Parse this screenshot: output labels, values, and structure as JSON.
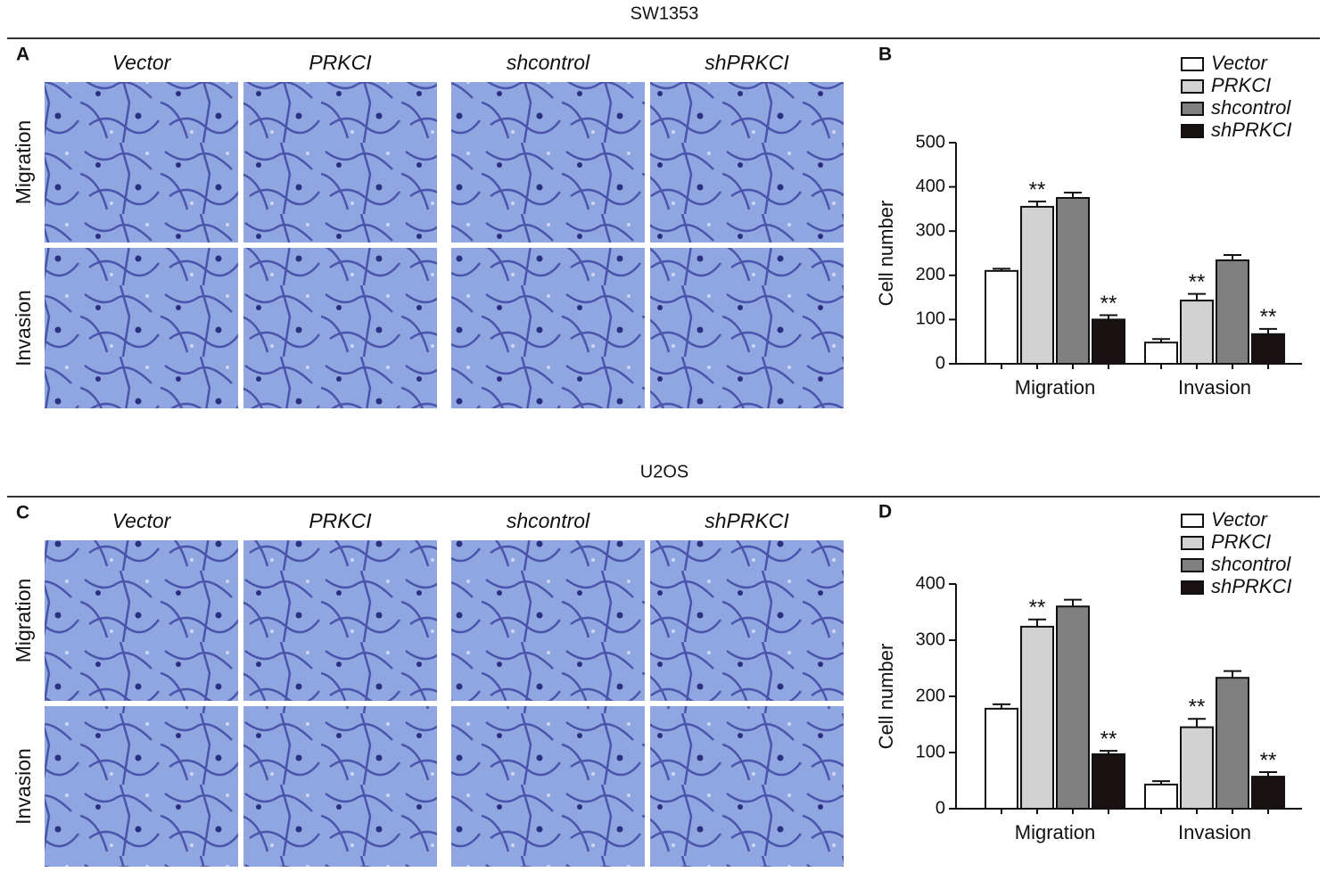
{
  "sections": [
    {
      "title": "SW1353",
      "image_panel": {
        "letter": "A",
        "columns": [
          "Vector",
          "PRKCI",
          "shcontrol",
          "shPRKCI"
        ],
        "rows": [
          "Migration",
          "Invasion"
        ]
      }
    },
    {
      "title": "U2OS",
      "image_panel": {
        "letter": "C",
        "columns": [
          "Vector",
          "PRKCI",
          "shcontrol",
          "shPRKCI"
        ],
        "rows": [
          "Migration",
          "Invasion"
        ]
      }
    }
  ],
  "chart_data": [
    {
      "type": "bar",
      "panel_letter": "B",
      "ylabel": "Cell number",
      "categories": [
        "Migration",
        "Invasion"
      ],
      "ylim": [
        0,
        500
      ],
      "yticks": [
        0,
        100,
        200,
        300,
        400,
        500
      ],
      "series": [
        {
          "name": "Vector",
          "color": "#ffffff",
          "values": [
            210,
            48
          ],
          "errors": [
            5,
            8
          ]
        },
        {
          "name": "PRKCI",
          "color": "#d2d2d2",
          "values": [
            355,
            143
          ],
          "errors": [
            12,
            15
          ],
          "significance": [
            "**",
            "**"
          ]
        },
        {
          "name": "shcontrol",
          "color": "#808080",
          "values": [
            375,
            234
          ],
          "errors": [
            12,
            12
          ]
        },
        {
          "name": "shPRKCI",
          "color": "#1a1212",
          "values": [
            100,
            67
          ],
          "errors": [
            10,
            12
          ],
          "significance": [
            "**",
            "**"
          ]
        }
      ]
    },
    {
      "type": "bar",
      "panel_letter": "D",
      "ylabel": "Cell number",
      "categories": [
        "Migration",
        "Invasion"
      ],
      "ylim": [
        0,
        400
      ],
      "yticks": [
        0,
        100,
        200,
        300,
        400
      ],
      "series": [
        {
          "name": "Vector",
          "color": "#ffffff",
          "values": [
            178,
            43
          ],
          "errors": [
            8,
            6
          ]
        },
        {
          "name": "PRKCI",
          "color": "#d2d2d2",
          "values": [
            324,
            145
          ],
          "errors": [
            13,
            15
          ],
          "significance": [
            "**",
            "**"
          ]
        },
        {
          "name": "shcontrol",
          "color": "#808080",
          "values": [
            360,
            233
          ],
          "errors": [
            12,
            12
          ]
        },
        {
          "name": "shPRKCI",
          "color": "#1a1212",
          "values": [
            97,
            57
          ],
          "errors": [
            6,
            8
          ],
          "significance": [
            "**",
            "**"
          ]
        }
      ]
    }
  ]
}
